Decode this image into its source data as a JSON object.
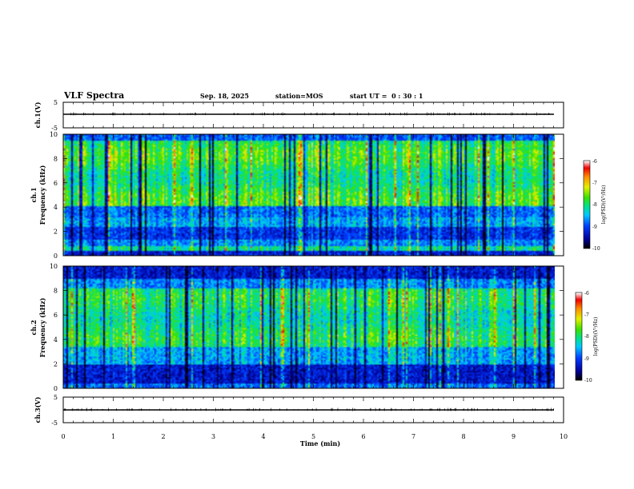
{
  "header": {
    "title": "VLF Spectra",
    "date": "Sep. 18, 2025",
    "station": "station=MOS",
    "start": "start UT =  0 : 30 : 1"
  },
  "chart_data": [
    {
      "type": "line",
      "name": "ch1-waveform",
      "ylabel": "ch.1(V)",
      "yticks": [
        "5",
        "-5"
      ],
      "ylim": [
        -5,
        5
      ],
      "baseline": 0,
      "xlim": [
        0,
        10
      ]
    },
    {
      "type": "heatmap",
      "name": "ch1-spectrogram",
      "ylabel": "ch.1",
      "ylabel2": "Frequency (kHz)",
      "yticks": [
        "0",
        "2",
        "4",
        "6",
        "8",
        "10"
      ],
      "ylim": [
        0,
        10
      ],
      "xlim": [
        0,
        10
      ],
      "data_end_min": 9.85,
      "colorbar": {
        "label": "log(PSD)(V²/Hz)",
        "ticks": [
          "-6",
          "-7",
          "-8",
          "-9",
          "-10"
        ],
        "range": [
          -10,
          -6
        ]
      }
    },
    {
      "type": "heatmap",
      "name": "ch2-spectrogram",
      "ylabel": "ch.2",
      "ylabel2": "Frequency (kHz)",
      "yticks": [
        "0",
        "2",
        "4",
        "6",
        "8",
        "10"
      ],
      "ylim": [
        0,
        10
      ],
      "xlim": [
        0,
        10
      ],
      "data_end_min": 9.85,
      "colorbar": {
        "label": "log(PSD)(V²/Hz)",
        "ticks": [
          "-6",
          "-7",
          "-8",
          "-9",
          "-10"
        ],
        "range": [
          -10,
          -6
        ]
      }
    },
    {
      "type": "line",
      "name": "ch3-waveform",
      "ylabel": "ch.3(V)",
      "yticks": [
        "5",
        "-5"
      ],
      "ylim": [
        -5,
        5
      ],
      "baseline": 0,
      "xlim": [
        0,
        10
      ]
    }
  ],
  "xaxis": {
    "label": "Time (min)",
    "ticks": [
      "0",
      "1",
      "2",
      "3",
      "4",
      "5",
      "6",
      "7",
      "8",
      "9",
      "10"
    ]
  },
  "colors": {
    "colormap": [
      "#000000",
      "#0000c8",
      "#0050ff",
      "#00c8ff",
      "#00e080",
      "#40e000",
      "#ffff00",
      "#ff8000",
      "#ff0000",
      "#ffffff"
    ]
  }
}
